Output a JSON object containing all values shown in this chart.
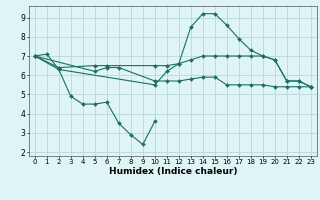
{
  "background_color": "#dff4f4",
  "grid_color": "#b8d8d8",
  "line_color": "#1a6e65",
  "xlabel": "Humidex (Indice chaleur)",
  "xlim": [
    -0.5,
    23.5
  ],
  "ylim": [
    1.8,
    9.6
  ],
  "yticks": [
    2,
    3,
    4,
    5,
    6,
    7,
    8,
    9
  ],
  "xticks": [
    0,
    1,
    2,
    3,
    4,
    5,
    6,
    7,
    8,
    9,
    10,
    11,
    12,
    13,
    14,
    15,
    16,
    17,
    18,
    19,
    20,
    21,
    22,
    23
  ],
  "series": [
    {
      "x": [
        0,
        1,
        2,
        3,
        4,
        5,
        6,
        7,
        8,
        9,
        10
      ],
      "y": [
        7.0,
        7.1,
        6.3,
        4.9,
        4.5,
        4.5,
        4.6,
        3.5,
        2.9,
        2.4,
        3.6
      ]
    },
    {
      "x": [
        0,
        2,
        10,
        11,
        12,
        13,
        14,
        15,
        16,
        17,
        18,
        19,
        20,
        21,
        22,
        23
      ],
      "y": [
        7.0,
        6.3,
        5.5,
        6.2,
        6.6,
        8.5,
        9.2,
        9.2,
        8.6,
        7.9,
        7.3,
        7.0,
        6.8,
        5.7,
        5.7,
        5.4
      ]
    },
    {
      "x": [
        0,
        2,
        5,
        6,
        10,
        11,
        12,
        13,
        14,
        15,
        16,
        17,
        18,
        19,
        20,
        21,
        22,
        23
      ],
      "y": [
        7.0,
        6.4,
        6.5,
        6.5,
        6.5,
        6.5,
        6.6,
        6.8,
        7.0,
        7.0,
        7.0,
        7.0,
        7.0,
        7.0,
        6.8,
        5.7,
        5.7,
        5.4
      ]
    },
    {
      "x": [
        0,
        5,
        6,
        7,
        10,
        11,
        12,
        13,
        14,
        15,
        16,
        17,
        18,
        19,
        20,
        21,
        22,
        23
      ],
      "y": [
        7.0,
        6.2,
        6.4,
        6.4,
        5.7,
        5.7,
        5.7,
        5.8,
        5.9,
        5.9,
        5.5,
        5.5,
        5.5,
        5.5,
        5.4,
        5.4,
        5.4,
        5.4
      ]
    }
  ]
}
